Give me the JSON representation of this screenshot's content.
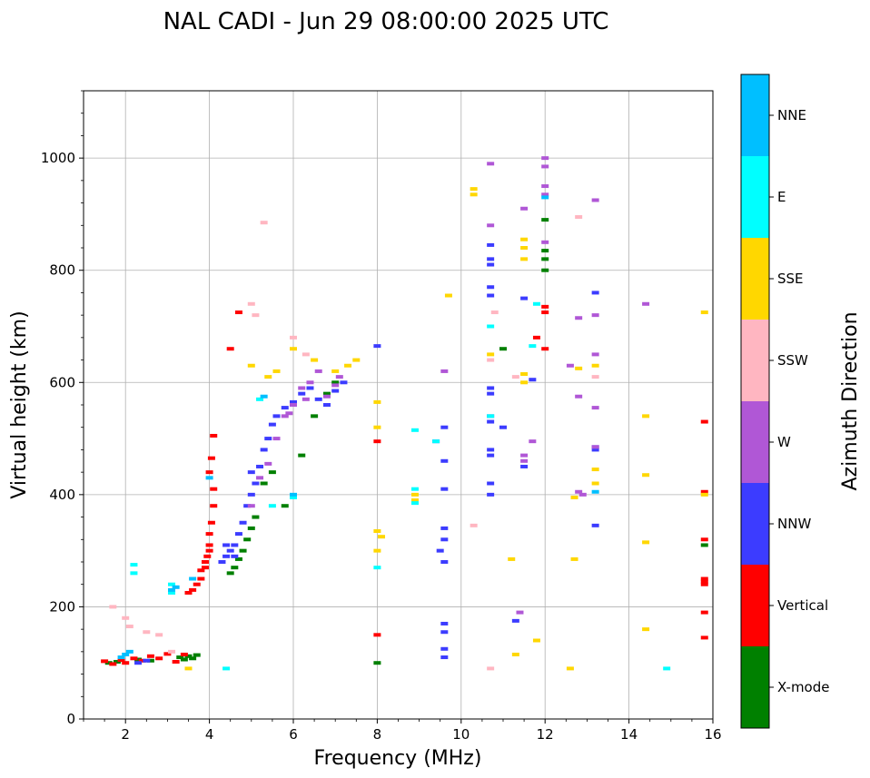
{
  "chart_data": {
    "type": "scatter",
    "title": "NAL CADI - Jun 29 08:00:00 2025 UTC",
    "xlabel": "Frequency (MHz)",
    "ylabel": "Virtual height (km)",
    "xlim": [
      1,
      16
    ],
    "ylim": [
      0,
      1120
    ],
    "xticks": [
      2,
      4,
      6,
      8,
      10,
      12,
      14,
      16
    ],
    "yticks": [
      0,
      200,
      400,
      600,
      800,
      1000
    ],
    "grid": true,
    "colorbar": {
      "label": "Azimuth Direction",
      "categories": [
        {
          "name": "X-mode",
          "color": "#008000"
        },
        {
          "name": "Vertical",
          "color": "#ff0000"
        },
        {
          "name": "NNW",
          "color": "#3c3cff"
        },
        {
          "name": "W",
          "color": "#b057d6"
        },
        {
          "name": "SSW",
          "color": "#ffb6c1"
        },
        {
          "name": "SSE",
          "color": "#ffd700"
        },
        {
          "name": "E",
          "color": "#00ffff"
        },
        {
          "name": "NNE",
          "color": "#00bfff"
        }
      ]
    },
    "series": [
      {
        "name": "X-mode",
        "points": [
          [
            1.6,
            100
          ],
          [
            1.8,
            102
          ],
          [
            2.3,
            106
          ],
          [
            2.6,
            104
          ],
          [
            3.3,
            110
          ],
          [
            3.5,
            112
          ],
          [
            3.7,
            114
          ],
          [
            3.4,
            106
          ],
          [
            3.6,
            108
          ],
          [
            4.5,
            260
          ],
          [
            4.6,
            270
          ],
          [
            4.7,
            285
          ],
          [
            4.8,
            300
          ],
          [
            4.9,
            320
          ],
          [
            5.0,
            340
          ],
          [
            5.1,
            360
          ],
          [
            5.3,
            420
          ],
          [
            5.5,
            440
          ],
          [
            5.8,
            380
          ],
          [
            6.2,
            470
          ],
          [
            6.5,
            540
          ],
          [
            6.8,
            580
          ],
          [
            7.0,
            600
          ],
          [
            8.0,
            100
          ],
          [
            11.0,
            660
          ],
          [
            12.0,
            800
          ],
          [
            12.0,
            820
          ],
          [
            12.0,
            835
          ],
          [
            12.0,
            890
          ],
          [
            15.8,
            310
          ]
        ]
      },
      {
        "name": "Vertical",
        "points": [
          [
            1.5,
            103
          ],
          [
            1.7,
            98
          ],
          [
            1.9,
            105
          ],
          [
            2.0,
            100
          ],
          [
            2.2,
            108
          ],
          [
            2.4,
            104
          ],
          [
            2.6,
            112
          ],
          [
            2.8,
            108
          ],
          [
            3.0,
            116
          ],
          [
            3.2,
            102
          ],
          [
            3.4,
            115
          ],
          [
            3.5,
            225
          ],
          [
            3.6,
            230
          ],
          [
            3.7,
            240
          ],
          [
            3.8,
            250
          ],
          [
            3.9,
            270
          ],
          [
            3.95,
            290
          ],
          [
            4.0,
            310
          ],
          [
            4.0,
            330
          ],
          [
            4.05,
            350
          ],
          [
            4.1,
            380
          ],
          [
            4.1,
            410
          ],
          [
            4.0,
            440
          ],
          [
            4.05,
            465
          ],
          [
            4.1,
            505
          ],
          [
            4.5,
            660
          ],
          [
            4.7,
            725
          ],
          [
            4.0,
            300
          ],
          [
            3.9,
            280
          ],
          [
            3.8,
            265
          ],
          [
            8.0,
            150
          ],
          [
            8.0,
            495
          ],
          [
            11.8,
            680
          ],
          [
            12.0,
            660
          ],
          [
            12.0,
            725
          ],
          [
            12.0,
            735
          ],
          [
            15.8,
            145
          ],
          [
            15.8,
            190
          ],
          [
            15.8,
            240
          ],
          [
            15.8,
            245
          ],
          [
            15.8,
            250
          ],
          [
            15.8,
            320
          ],
          [
            15.8,
            405
          ],
          [
            15.8,
            530
          ]
        ]
      },
      {
        "name": "NNW",
        "points": [
          [
            2.3,
            100
          ],
          [
            2.5,
            104
          ],
          [
            4.3,
            280
          ],
          [
            4.4,
            290
          ],
          [
            4.5,
            300
          ],
          [
            4.6,
            310
          ],
          [
            4.7,
            330
          ],
          [
            4.8,
            350
          ],
          [
            4.9,
            380
          ],
          [
            5.0,
            400
          ],
          [
            5.1,
            420
          ],
          [
            5.2,
            450
          ],
          [
            5.3,
            480
          ],
          [
            5.4,
            500
          ],
          [
            5.5,
            525
          ],
          [
            5.6,
            540
          ],
          [
            5.8,
            555
          ],
          [
            6.0,
            565
          ],
          [
            6.2,
            580
          ],
          [
            6.4,
            590
          ],
          [
            6.6,
            570
          ],
          [
            6.8,
            560
          ],
          [
            7.0,
            585
          ],
          [
            7.2,
            600
          ],
          [
            4.4,
            310
          ],
          [
            4.6,
            290
          ],
          [
            5.0,
            440
          ],
          [
            8.0,
            665
          ],
          [
            9.5,
            300
          ],
          [
            9.6,
            170
          ],
          [
            9.6,
            155
          ],
          [
            9.6,
            125
          ],
          [
            9.6,
            110
          ],
          [
            9.6,
            280
          ],
          [
            9.6,
            320
          ],
          [
            9.6,
            340
          ],
          [
            9.6,
            410
          ],
          [
            9.6,
            460
          ],
          [
            9.4,
            495
          ],
          [
            9.6,
            520
          ],
          [
            10.7,
            400
          ],
          [
            10.7,
            420
          ],
          [
            10.7,
            470
          ],
          [
            10.7,
            480
          ],
          [
            10.7,
            530
          ],
          [
            10.7,
            540
          ],
          [
            10.7,
            580
          ],
          [
            10.7,
            590
          ],
          [
            10.7,
            755
          ],
          [
            10.7,
            770
          ],
          [
            10.7,
            810
          ],
          [
            10.7,
            820
          ],
          [
            10.7,
            845
          ],
          [
            11.3,
            175
          ],
          [
            11.5,
            450
          ],
          [
            11.5,
            750
          ],
          [
            11.0,
            520
          ],
          [
            11.7,
            605
          ],
          [
            13.2,
            345
          ],
          [
            13.2,
            480
          ],
          [
            13.2,
            485
          ],
          [
            13.2,
            760
          ]
        ]
      },
      {
        "name": "W",
        "points": [
          [
            5.0,
            380
          ],
          [
            5.2,
            430
          ],
          [
            5.4,
            455
          ],
          [
            5.6,
            500
          ],
          [
            5.8,
            540
          ],
          [
            6.0,
            560
          ],
          [
            6.2,
            590
          ],
          [
            6.4,
            600
          ],
          [
            6.6,
            620
          ],
          [
            6.8,
            575
          ],
          [
            7.0,
            595
          ],
          [
            7.1,
            610
          ],
          [
            6.3,
            570
          ],
          [
            5.9,
            545
          ],
          [
            10.7,
            880
          ],
          [
            10.7,
            990
          ],
          [
            11.5,
            910
          ],
          [
            11.5,
            460
          ],
          [
            11.5,
            470
          ],
          [
            11.7,
            495
          ],
          [
            11.4,
            190
          ],
          [
            12.0,
            850
          ],
          [
            12.0,
            935
          ],
          [
            12.0,
            950
          ],
          [
            12.0,
            1000
          ],
          [
            12.0,
            985
          ],
          [
            12.8,
            405
          ],
          [
            12.9,
            400
          ],
          [
            12.6,
            630
          ],
          [
            12.8,
            715
          ],
          [
            12.8,
            575
          ],
          [
            13.2,
            650
          ],
          [
            13.2,
            555
          ],
          [
            13.2,
            485
          ],
          [
            13.2,
            720
          ],
          [
            13.2,
            925
          ],
          [
            14.4,
            740
          ],
          [
            9.6,
            620
          ]
        ]
      },
      {
        "name": "SSW",
        "points": [
          [
            1.7,
            200
          ],
          [
            2.0,
            180
          ],
          [
            2.1,
            165
          ],
          [
            2.5,
            155
          ],
          [
            2.8,
            150
          ],
          [
            3.1,
            120
          ],
          [
            5.0,
            740
          ],
          [
            5.1,
            720
          ],
          [
            5.3,
            885
          ],
          [
            6.0,
            680
          ],
          [
            6.3,
            650
          ],
          [
            10.3,
            345
          ],
          [
            10.7,
            90
          ],
          [
            10.7,
            640
          ],
          [
            10.8,
            725
          ],
          [
            11.3,
            610
          ],
          [
            12.8,
            895
          ],
          [
            13.2,
            610
          ]
        ]
      },
      {
        "name": "SSE",
        "points": [
          [
            3.5,
            90
          ],
          [
            5.0,
            630
          ],
          [
            5.4,
            610
          ],
          [
            5.6,
            620
          ],
          [
            6.0,
            660
          ],
          [
            6.5,
            640
          ],
          [
            7.0,
            620
          ],
          [
            7.3,
            630
          ],
          [
            7.5,
            640
          ],
          [
            8.0,
            335
          ],
          [
            8.1,
            325
          ],
          [
            8.0,
            300
          ],
          [
            8.0,
            520
          ],
          [
            8.0,
            565
          ],
          [
            8.9,
            390
          ],
          [
            8.9,
            400
          ],
          [
            10.3,
            945
          ],
          [
            10.3,
            935
          ],
          [
            10.7,
            650
          ],
          [
            11.2,
            285
          ],
          [
            11.3,
            115
          ],
          [
            11.5,
            600
          ],
          [
            11.5,
            615
          ],
          [
            11.5,
            820
          ],
          [
            11.5,
            840
          ],
          [
            11.5,
            855
          ],
          [
            11.8,
            140
          ],
          [
            12.6,
            90
          ],
          [
            12.7,
            285
          ],
          [
            12.7,
            395
          ],
          [
            12.8,
            625
          ],
          [
            13.2,
            420
          ],
          [
            13.2,
            445
          ],
          [
            13.2,
            630
          ],
          [
            14.4,
            435
          ],
          [
            14.4,
            540
          ],
          [
            14.4,
            160
          ],
          [
            14.4,
            315
          ],
          [
            15.8,
            725
          ],
          [
            15.8,
            400
          ],
          [
            9.7,
            755
          ]
        ]
      },
      {
        "name": "E",
        "points": [
          [
            2.2,
            275
          ],
          [
            2.2,
            260
          ],
          [
            3.1,
            240
          ],
          [
            3.1,
            225
          ],
          [
            4.4,
            90
          ],
          [
            5.2,
            570
          ],
          [
            5.5,
            380
          ],
          [
            6.0,
            395
          ],
          [
            8.0,
            270
          ],
          [
            8.9,
            385
          ],
          [
            8.9,
            410
          ],
          [
            8.9,
            515
          ],
          [
            9.4,
            495
          ],
          [
            10.7,
            700
          ],
          [
            10.7,
            540
          ],
          [
            11.7,
            665
          ],
          [
            11.8,
            740
          ],
          [
            14.9,
            90
          ]
        ]
      },
      {
        "name": "NNE",
        "points": [
          [
            1.9,
            110
          ],
          [
            2.0,
            115
          ],
          [
            2.1,
            120
          ],
          [
            3.1,
            230
          ],
          [
            3.2,
            235
          ],
          [
            3.6,
            250
          ],
          [
            4.0,
            430
          ],
          [
            5.3,
            575
          ],
          [
            6.0,
            400
          ],
          [
            12.0,
            930
          ],
          [
            13.2,
            405
          ]
        ]
      }
    ]
  }
}
